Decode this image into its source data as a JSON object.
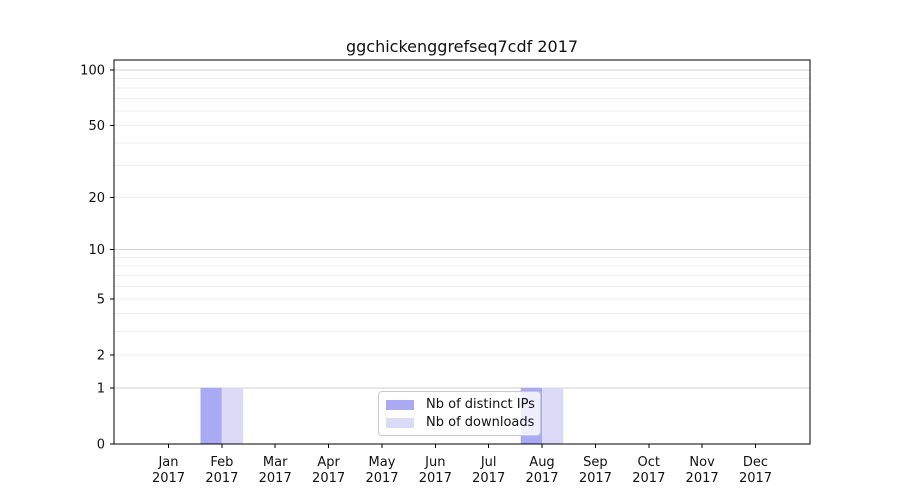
{
  "chart_data": {
    "type": "bar",
    "title": "ggchickenggrefseq7cdf 2017",
    "categories": [
      "Jan",
      "Feb",
      "Mar",
      "Apr",
      "May",
      "Jun",
      "Jul",
      "Aug",
      "Sep",
      "Oct",
      "Nov",
      "Dec"
    ],
    "year": "2017",
    "series": [
      {
        "name": "Nb of distinct IPs",
        "color": "#a9a9f4",
        "values": [
          0,
          1,
          0,
          0,
          0,
          0,
          0,
          1,
          0,
          0,
          0,
          0
        ]
      },
      {
        "name": "Nb of downloads",
        "color": "#dbdbf8",
        "values": [
          0,
          1,
          0,
          0,
          0,
          0,
          0,
          1,
          0,
          0,
          0,
          0
        ]
      }
    ],
    "y_scale": "log1p",
    "ylim": [
      0,
      100
    ],
    "y_tick_labels": [
      0,
      1,
      2,
      5,
      10,
      20,
      50,
      100
    ],
    "y_gridlines_major": [
      1,
      10,
      100
    ],
    "y_gridlines_minor": [
      2,
      3,
      4,
      5,
      6,
      7,
      8,
      9,
      20,
      30,
      40,
      50,
      60,
      70,
      80,
      90
    ],
    "legend_position": "lower center",
    "grid": true,
    "colors": {
      "axis": "#000000",
      "text": "#111111",
      "grid_major": "#d2d2d2",
      "grid_minor": "#efefef",
      "legend_border": "#c9c9c9"
    }
  }
}
